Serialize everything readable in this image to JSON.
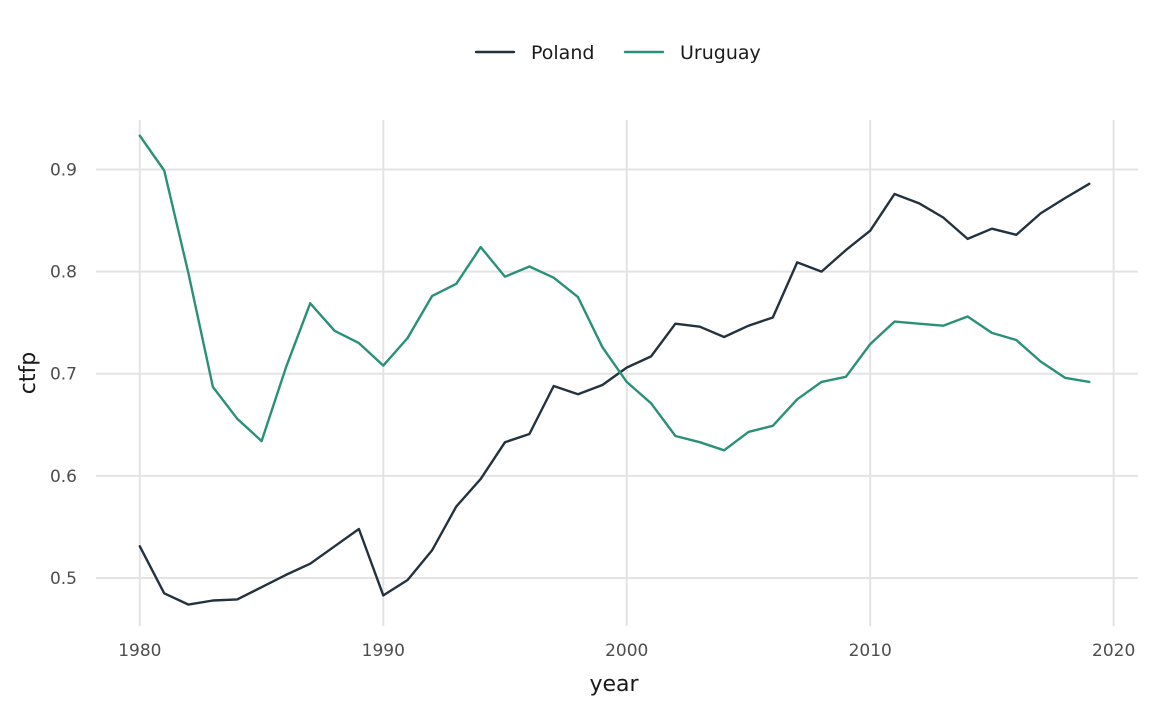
{
  "chart_data": {
    "type": "line",
    "xlabel": "year",
    "ylabel": "ctfp",
    "xlim": [
      1978.2,
      2021.0
    ],
    "ylim": [
      0.453,
      0.968
    ],
    "x_ticks": [
      1980,
      1990,
      2000,
      2010,
      2020
    ],
    "y_ticks": [
      0.5,
      0.6,
      0.7,
      0.8,
      0.9
    ],
    "y_tick_labels": [
      "0.5",
      "0.6",
      "0.7",
      "0.8",
      "0.9"
    ],
    "x_tick_labels": [
      "1980",
      "1990",
      "2000",
      "2010",
      "2020"
    ],
    "grid": true,
    "legend_position": "top",
    "x": [
      1980,
      1981,
      1982,
      1983,
      1984,
      1985,
      1986,
      1987,
      1988,
      1989,
      1990,
      1991,
      1992,
      1993,
      1994,
      1995,
      1996,
      1997,
      1998,
      1999,
      2000,
      2001,
      2002,
      2003,
      2004,
      2005,
      2006,
      2007,
      2008,
      2009,
      2010,
      2011,
      2012,
      2013,
      2014,
      2015,
      2016,
      2017,
      2018,
      2019
    ],
    "series": [
      {
        "name": "Poland",
        "color": "#22333f",
        "values": [
          0.531,
          0.485,
          0.474,
          0.478,
          0.479,
          0.491,
          0.503,
          0.514,
          0.531,
          0.548,
          0.483,
          0.498,
          0.527,
          0.57,
          0.597,
          0.633,
          0.641,
          0.688,
          0.68,
          0.689,
          0.706,
          0.717,
          0.749,
          0.746,
          0.736,
          0.747,
          0.755,
          0.809,
          0.8,
          0.821,
          0.84,
          0.876,
          0.867,
          0.853,
          0.832,
          0.842,
          0.836,
          0.857,
          0.872,
          0.886
        ]
      },
      {
        "name": "Uruguay",
        "color": "#2a9078",
        "values": [
          0.933,
          0.899,
          0.798,
          0.687,
          0.656,
          0.634,
          0.706,
          0.769,
          0.742,
          0.73,
          0.708,
          0.735,
          0.776,
          0.788,
          0.824,
          0.795,
          0.805,
          0.794,
          0.775,
          0.726,
          0.692,
          0.671,
          0.639,
          0.633,
          0.625,
          0.643,
          0.649,
          0.675,
          0.692,
          0.697,
          0.729,
          0.751,
          0.749,
          0.747,
          0.756,
          0.74,
          0.733,
          0.712,
          0.696,
          0.692
        ]
      }
    ]
  }
}
